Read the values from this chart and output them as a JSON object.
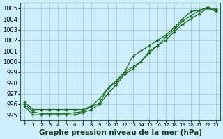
{
  "title": "Graphe pression niveau de la mer (hPa)",
  "bg_color": "#cceeff",
  "grid_color": "#aacccc",
  "line_color": "#1a6b1a",
  "series1": {
    "x": [
      0,
      1,
      2,
      3,
      4,
      5,
      6,
      7,
      8,
      9,
      10,
      11,
      12,
      13,
      14,
      15,
      16,
      17,
      18,
      19,
      20,
      21,
      22,
      23
    ],
    "y": [
      996.0,
      995.3,
      995.1,
      995.1,
      995.1,
      995.1,
      995.2,
      995.3,
      995.8,
      996.5,
      997.5,
      998.2,
      999.0,
      999.5,
      1000.0,
      1001.0,
      1001.5,
      1002.0,
      1002.8,
      1003.5,
      1004.0,
      1004.5,
      1005.0,
      1004.8
    ]
  },
  "series2": {
    "x": [
      0,
      1,
      2,
      3,
      4,
      5,
      6,
      7,
      8,
      9,
      10,
      11,
      12,
      13,
      14,
      15,
      16,
      17,
      18,
      19,
      20,
      21,
      22,
      23
    ],
    "y": [
      995.8,
      995.0,
      995.0,
      995.0,
      995.0,
      995.0,
      995.0,
      995.2,
      995.5,
      996.0,
      997.0,
      997.8,
      998.8,
      999.3,
      1000.0,
      1000.8,
      1001.5,
      1002.3,
      1003.0,
      1003.8,
      1004.3,
      1004.8,
      1005.0,
      1004.7
    ]
  },
  "series3": {
    "x": [
      0,
      1,
      2,
      3,
      4,
      5,
      6,
      7,
      8,
      9,
      10,
      11,
      12,
      13,
      14,
      15,
      16,
      17,
      18,
      19,
      20,
      21,
      22,
      23
    ],
    "y": [
      996.2,
      995.5,
      995.5,
      995.5,
      995.5,
      995.5,
      995.5,
      995.5,
      995.8,
      996.1,
      997.5,
      998.0,
      999.0,
      1000.5,
      1001.0,
      1001.5,
      1002.0,
      1002.5,
      1003.2,
      1004.0,
      1004.7,
      1004.8,
      1005.1,
      1004.9
    ]
  },
  "ylim": [
    994.5,
    1005.5
  ],
  "yticks": [
    995,
    996,
    997,
    998,
    999,
    1000,
    1001,
    1002,
    1003,
    1004,
    1005
  ],
  "xticks": [
    0,
    1,
    2,
    3,
    4,
    5,
    6,
    7,
    8,
    9,
    10,
    11,
    12,
    13,
    14,
    15,
    16,
    17,
    18,
    19,
    20,
    21,
    22,
    23
  ],
  "title_fontsize": 7.5,
  "tick_fontsize": 6
}
